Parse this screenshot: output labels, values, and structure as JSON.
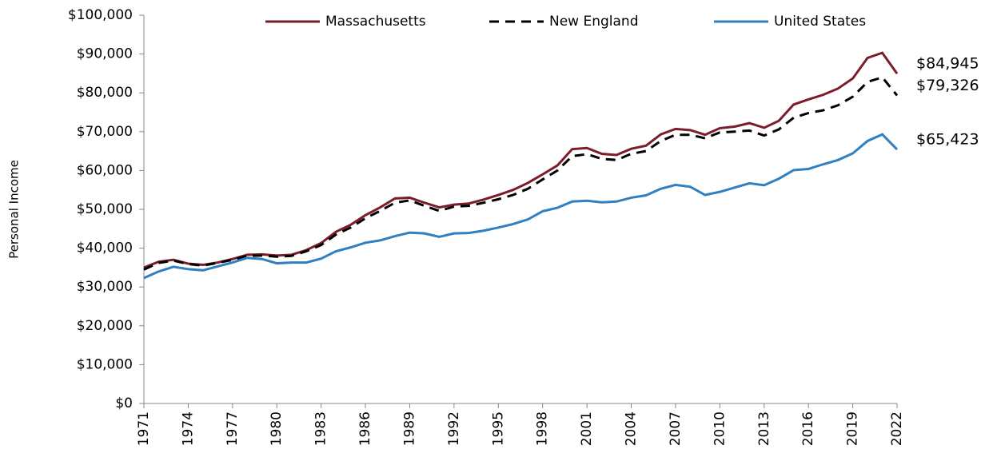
{
  "chart_data": {
    "type": "line",
    "y_axis_label": "Personal Income",
    "legend": "top",
    "grid": false,
    "x": [
      1971,
      1972,
      1973,
      1974,
      1975,
      1976,
      1977,
      1978,
      1979,
      1980,
      1981,
      1982,
      1983,
      1984,
      1985,
      1986,
      1987,
      1988,
      1989,
      1990,
      1991,
      1992,
      1993,
      1994,
      1995,
      1996,
      1997,
      1998,
      1999,
      2000,
      2001,
      2002,
      2003,
      2004,
      2005,
      2006,
      2007,
      2008,
      2009,
      2010,
      2011,
      2012,
      2013,
      2014,
      2015,
      2016,
      2017,
      2018,
      2019,
      2020,
      2021,
      2022
    ],
    "xlim": [
      1971,
      2022
    ],
    "xticks": [
      1971,
      1974,
      1977,
      1980,
      1983,
      1986,
      1989,
      1992,
      1995,
      1998,
      2001,
      2004,
      2007,
      2010,
      2013,
      2016,
      2019,
      2022
    ],
    "ylim": [
      0,
      100000
    ],
    "yticks": [
      {
        "value": 0,
        "label": "$0"
      },
      {
        "value": 10000,
        "label": "$10,000"
      },
      {
        "value": 20000,
        "label": "$20,000"
      },
      {
        "value": 30000,
        "label": "$30,000"
      },
      {
        "value": 40000,
        "label": "$40,000"
      },
      {
        "value": 50000,
        "label": "$50,000"
      },
      {
        "value": 60000,
        "label": "$60,000"
      },
      {
        "value": 70000,
        "label": "$70,000"
      },
      {
        "value": 80000,
        "label": "$80,000"
      },
      {
        "value": 90000,
        "label": "$90,000"
      },
      {
        "value": 100000,
        "label": "$100,000"
      }
    ],
    "series": [
      {
        "name": "Massachusetts",
        "color": "#7b1c2a",
        "dash": "solid",
        "end_label": "$84,945",
        "values": [
          35000,
          36500,
          37000,
          36000,
          35700,
          36300,
          37200,
          38300,
          38400,
          38100,
          38300,
          39500,
          41300,
          44200,
          46000,
          48500,
          50500,
          52800,
          53000,
          51700,
          50500,
          51200,
          51500,
          52500,
          53700,
          55000,
          56800,
          59000,
          61300,
          65500,
          65800,
          64300,
          64000,
          65600,
          66400,
          69300,
          70700,
          70400,
          69200,
          70900,
          71300,
          72200,
          71000,
          72800,
          77000,
          78300,
          79500,
          81100,
          83700,
          89000,
          90300,
          84945
        ]
      },
      {
        "name": "New England",
        "color": "#000000",
        "dash": "dashed",
        "end_label": "$79,326",
        "values": [
          34500,
          36200,
          36800,
          35900,
          35500,
          36200,
          37000,
          38000,
          38100,
          37800,
          38000,
          39200,
          40800,
          43500,
          45300,
          47700,
          49600,
          51700,
          52300,
          50900,
          49600,
          50700,
          50900,
          51700,
          52600,
          53700,
          55300,
          57700,
          60000,
          63700,
          64200,
          63000,
          62700,
          64300,
          65000,
          67600,
          69200,
          69200,
          68300,
          69800,
          70000,
          70300,
          69000,
          70600,
          73600,
          74800,
          75500,
          76800,
          79000,
          82800,
          84000,
          79326
        ]
      },
      {
        "name": "United States",
        "color": "#2f7fc1",
        "dash": "solid",
        "end_label": "$65,423",
        "values": [
          32300,
          34000,
          35200,
          34600,
          34300,
          35300,
          36300,
          37500,
          37200,
          36100,
          36300,
          36300,
          37300,
          39200,
          40200,
          41400,
          42000,
          43100,
          44000,
          43800,
          42900,
          43800,
          43900,
          44500,
          45300,
          46200,
          47400,
          49500,
          50400,
          52000,
          52200,
          51800,
          52000,
          53000,
          53600,
          55300,
          56300,
          55800,
          53700,
          54500,
          55600,
          56700,
          56200,
          57900,
          60100,
          60400,
          61600,
          62700,
          64400,
          67600,
          69300,
          65423
        ]
      }
    ]
  }
}
